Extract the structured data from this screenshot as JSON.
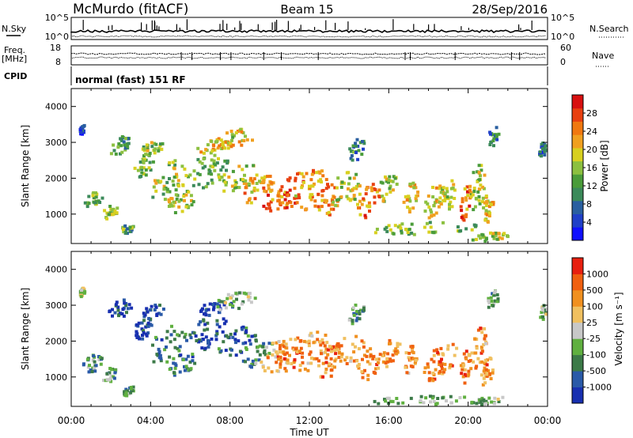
{
  "header": {
    "title": "McMurdo (fitACF)",
    "beam": "Beam 15",
    "date": "28/Sep/2016"
  },
  "status_panels": {
    "nsky_label": "N.Sky",
    "nsearch_label": "N.Search",
    "freq_label": "Freq.",
    "freq_unit": "[MHz]",
    "nave_label": "Nave",
    "cpid_label": "CPID",
    "cpid_value": "normal (fast) 151 RF",
    "noise_ticks": [
      "10^5",
      "10^0"
    ],
    "freq_ticks": [
      "18",
      "8"
    ],
    "nave_ticks": [
      "60",
      "0"
    ]
  },
  "chart_data": [
    {
      "type": "heatmap",
      "name": "power",
      "ylabel": "Slant Range [km]",
      "xlabel": "Time UT",
      "ylim": [
        180,
        4500
      ],
      "xlim": [
        0,
        24
      ],
      "x_ticks": [
        "00:00",
        "04:00",
        "08:00",
        "12:00",
        "16:00",
        "20:00",
        "00:00"
      ],
      "y_ticks": [
        "1000",
        "2000",
        "3000",
        "4000"
      ],
      "colorbar": {
        "label": "Power [dB]",
        "ticks": [
          "4",
          "8",
          "12",
          "16",
          "20",
          "24",
          "28"
        ],
        "colors": [
          "#1010ff",
          "#2040c8",
          "#2a5fa0",
          "#3b8a5a",
          "#4a9c3a",
          "#8cc040",
          "#d8d020",
          "#f0a020",
          "#f07810",
          "#e84010",
          "#d81010"
        ]
      },
      "blobs": [
        {
          "t": 0.5,
          "r": 3350,
          "dt": 0.15,
          "dr": 120,
          "lvl": 0.15
        },
        {
          "t": 1.0,
          "r": 1350,
          "dt": 0.5,
          "dr": 250,
          "lvl": 0.45
        },
        {
          "t": 1.9,
          "r": 1050,
          "dt": 0.4,
          "dr": 200,
          "lvl": 0.5
        },
        {
          "t": 2.4,
          "r": 2900,
          "dt": 0.6,
          "dr": 250,
          "lvl": 0.35
        },
        {
          "t": 2.8,
          "r": 620,
          "dt": 0.3,
          "dr": 150,
          "lvl": 0.4
        },
        {
          "t": 3.6,
          "r": 2350,
          "dt": 0.5,
          "dr": 300,
          "lvl": 0.45
        },
        {
          "t": 4.0,
          "r": 2800,
          "dt": 0.6,
          "dr": 200,
          "lvl": 0.5
        },
        {
          "t": 4.8,
          "r": 1900,
          "dt": 0.9,
          "dr": 550,
          "lvl": 0.5
        },
        {
          "t": 5.5,
          "r": 1350,
          "dt": 0.7,
          "dr": 300,
          "lvl": 0.55
        },
        {
          "t": 6.8,
          "r": 2200,
          "dt": 1.1,
          "dr": 450,
          "lvl": 0.45
        },
        {
          "t": 7.2,
          "r": 2900,
          "dt": 0.9,
          "dr": 200,
          "lvl": 0.65
        },
        {
          "t": 8.2,
          "r": 3100,
          "dt": 1.0,
          "dr": 250,
          "lvl": 0.6
        },
        {
          "t": 8.3,
          "r": 2000,
          "dt": 1.0,
          "dr": 400,
          "lvl": 0.55
        },
        {
          "t": 9.3,
          "r": 1700,
          "dt": 0.8,
          "dr": 400,
          "lvl": 0.65
        },
        {
          "t": 10.2,
          "r": 1550,
          "dt": 0.8,
          "dr": 450,
          "lvl": 0.75
        },
        {
          "t": 11.0,
          "r": 1700,
          "dt": 0.7,
          "dr": 500,
          "lvl": 0.8
        },
        {
          "t": 12.0,
          "r": 1700,
          "dt": 0.9,
          "dr": 550,
          "lvl": 0.7
        },
        {
          "t": 12.9,
          "r": 1400,
          "dt": 0.6,
          "dr": 450,
          "lvl": 0.75
        },
        {
          "t": 13.8,
          "r": 1700,
          "dt": 0.9,
          "dr": 450,
          "lvl": 0.55
        },
        {
          "t": 14.3,
          "r": 2800,
          "dt": 0.4,
          "dr": 300,
          "lvl": 0.3
        },
        {
          "t": 14.9,
          "r": 1350,
          "dt": 0.6,
          "dr": 450,
          "lvl": 0.75
        },
        {
          "t": 15.9,
          "r": 1700,
          "dt": 0.6,
          "dr": 400,
          "lvl": 0.5
        },
        {
          "t": 17.0,
          "r": 1450,
          "dt": 0.4,
          "dr": 400,
          "lvl": 0.6
        },
        {
          "t": 18.2,
          "r": 1350,
          "dt": 0.5,
          "dr": 450,
          "lvl": 0.6
        },
        {
          "t": 18.9,
          "r": 1500,
          "dt": 0.5,
          "dr": 400,
          "lvl": 0.55
        },
        {
          "t": 19.8,
          "r": 1300,
          "dt": 0.3,
          "dr": 450,
          "lvl": 0.75
        },
        {
          "t": 20.4,
          "r": 1750,
          "dt": 0.5,
          "dr": 600,
          "lvl": 0.55
        },
        {
          "t": 20.9,
          "r": 1150,
          "dt": 0.3,
          "dr": 400,
          "lvl": 0.65
        },
        {
          "t": 21.2,
          "r": 3150,
          "dt": 0.3,
          "dr": 250,
          "lvl": 0.3
        },
        {
          "t": 17.8,
          "r": 600,
          "dt": 2.8,
          "dr": 170,
          "lvl": 0.45
        },
        {
          "t": 21.0,
          "r": 350,
          "dt": 1.0,
          "dr": 120,
          "lvl": 0.55
        },
        {
          "t": 23.7,
          "r": 2800,
          "dt": 0.2,
          "dr": 200,
          "lvl": 0.2
        }
      ]
    },
    {
      "type": "heatmap",
      "name": "velocity",
      "ylabel": "Slant Range [km]",
      "xlabel": "Time UT",
      "ylim": [
        180,
        4500
      ],
      "xlim": [
        0,
        24
      ],
      "x_ticks": [
        "00:00",
        "04:00",
        "08:00",
        "12:00",
        "16:00",
        "20:00",
        "00:00"
      ],
      "y_ticks": [
        "1000",
        "2000",
        "3000",
        "4000"
      ],
      "colorbar": {
        "label": "Velocity [m s⁻¹]",
        "ticks": [
          "1000",
          "500",
          "100",
          "25",
          "-25",
          "-100",
          "-500",
          "-1000"
        ],
        "colors": [
          "#1830b0",
          "#2a5aa8",
          "#3c7a48",
          "#60b040",
          "#c8c8c8",
          "#f0c060",
          "#f09020",
          "#f06010",
          "#e82010"
        ]
      },
      "blobs": [
        {
          "t": 0.5,
          "r": 3350,
          "dt": 0.15,
          "dr": 120,
          "lvl": 0.5
        },
        {
          "t": 1.0,
          "r": 1350,
          "dt": 0.5,
          "dr": 250,
          "lvl": 0.3
        },
        {
          "t": 1.9,
          "r": 1050,
          "dt": 0.4,
          "dr": 200,
          "lvl": 0.35
        },
        {
          "t": 2.4,
          "r": 2900,
          "dt": 0.6,
          "dr": 250,
          "lvl": 0.1
        },
        {
          "t": 2.8,
          "r": 620,
          "dt": 0.3,
          "dr": 150,
          "lvl": 0.3
        },
        {
          "t": 3.6,
          "r": 2350,
          "dt": 0.5,
          "dr": 300,
          "lvl": 0.1
        },
        {
          "t": 4.0,
          "r": 2800,
          "dt": 0.6,
          "dr": 200,
          "lvl": 0.1
        },
        {
          "t": 4.8,
          "r": 1900,
          "dt": 0.9,
          "dr": 550,
          "lvl": 0.25
        },
        {
          "t": 5.5,
          "r": 1350,
          "dt": 0.7,
          "dr": 300,
          "lvl": 0.25
        },
        {
          "t": 6.8,
          "r": 2200,
          "dt": 1.1,
          "dr": 450,
          "lvl": 0.15
        },
        {
          "t": 7.2,
          "r": 2900,
          "dt": 0.9,
          "dr": 200,
          "lvl": 0.1
        },
        {
          "t": 8.2,
          "r": 3100,
          "dt": 1.0,
          "dr": 250,
          "lvl": 0.45
        },
        {
          "t": 8.3,
          "r": 2000,
          "dt": 1.0,
          "dr": 400,
          "lvl": 0.2
        },
        {
          "t": 9.3,
          "r": 1700,
          "dt": 0.8,
          "dr": 400,
          "lvl": 0.3
        },
        {
          "t": 10.2,
          "r": 1550,
          "dt": 0.8,
          "dr": 450,
          "lvl": 0.65
        },
        {
          "t": 11.0,
          "r": 1700,
          "dt": 0.7,
          "dr": 500,
          "lvl": 0.75
        },
        {
          "t": 12.0,
          "r": 1700,
          "dt": 0.9,
          "dr": 550,
          "lvl": 0.72
        },
        {
          "t": 12.9,
          "r": 1400,
          "dt": 0.6,
          "dr": 450,
          "lvl": 0.78
        },
        {
          "t": 13.8,
          "r": 1700,
          "dt": 0.9,
          "dr": 450,
          "lvl": 0.7
        },
        {
          "t": 14.3,
          "r": 2800,
          "dt": 0.4,
          "dr": 300,
          "lvl": 0.35
        },
        {
          "t": 14.9,
          "r": 1350,
          "dt": 0.6,
          "dr": 450,
          "lvl": 0.78
        },
        {
          "t": 15.9,
          "r": 1700,
          "dt": 0.6,
          "dr": 400,
          "lvl": 0.7
        },
        {
          "t": 17.0,
          "r": 1450,
          "dt": 0.4,
          "dr": 400,
          "lvl": 0.72
        },
        {
          "t": 18.2,
          "r": 1350,
          "dt": 0.5,
          "dr": 450,
          "lvl": 0.78
        },
        {
          "t": 18.9,
          "r": 1500,
          "dt": 0.5,
          "dr": 400,
          "lvl": 0.75
        },
        {
          "t": 19.8,
          "r": 1300,
          "dt": 0.3,
          "dr": 450,
          "lvl": 0.78
        },
        {
          "t": 20.4,
          "r": 1750,
          "dt": 0.5,
          "dr": 600,
          "lvl": 0.72
        },
        {
          "t": 20.9,
          "r": 1150,
          "dt": 0.3,
          "dr": 400,
          "lvl": 0.75
        },
        {
          "t": 21.2,
          "r": 3150,
          "dt": 0.3,
          "dr": 250,
          "lvl": 0.35
        },
        {
          "t": 17.8,
          "r": 350,
          "dt": 2.8,
          "dr": 130,
          "lvl": 0.4
        },
        {
          "t": 21.0,
          "r": 330,
          "dt": 1.0,
          "dr": 100,
          "lvl": 0.4
        },
        {
          "t": 23.7,
          "r": 2800,
          "dt": 0.2,
          "dr": 200,
          "lvl": 0.45
        }
      ]
    }
  ]
}
